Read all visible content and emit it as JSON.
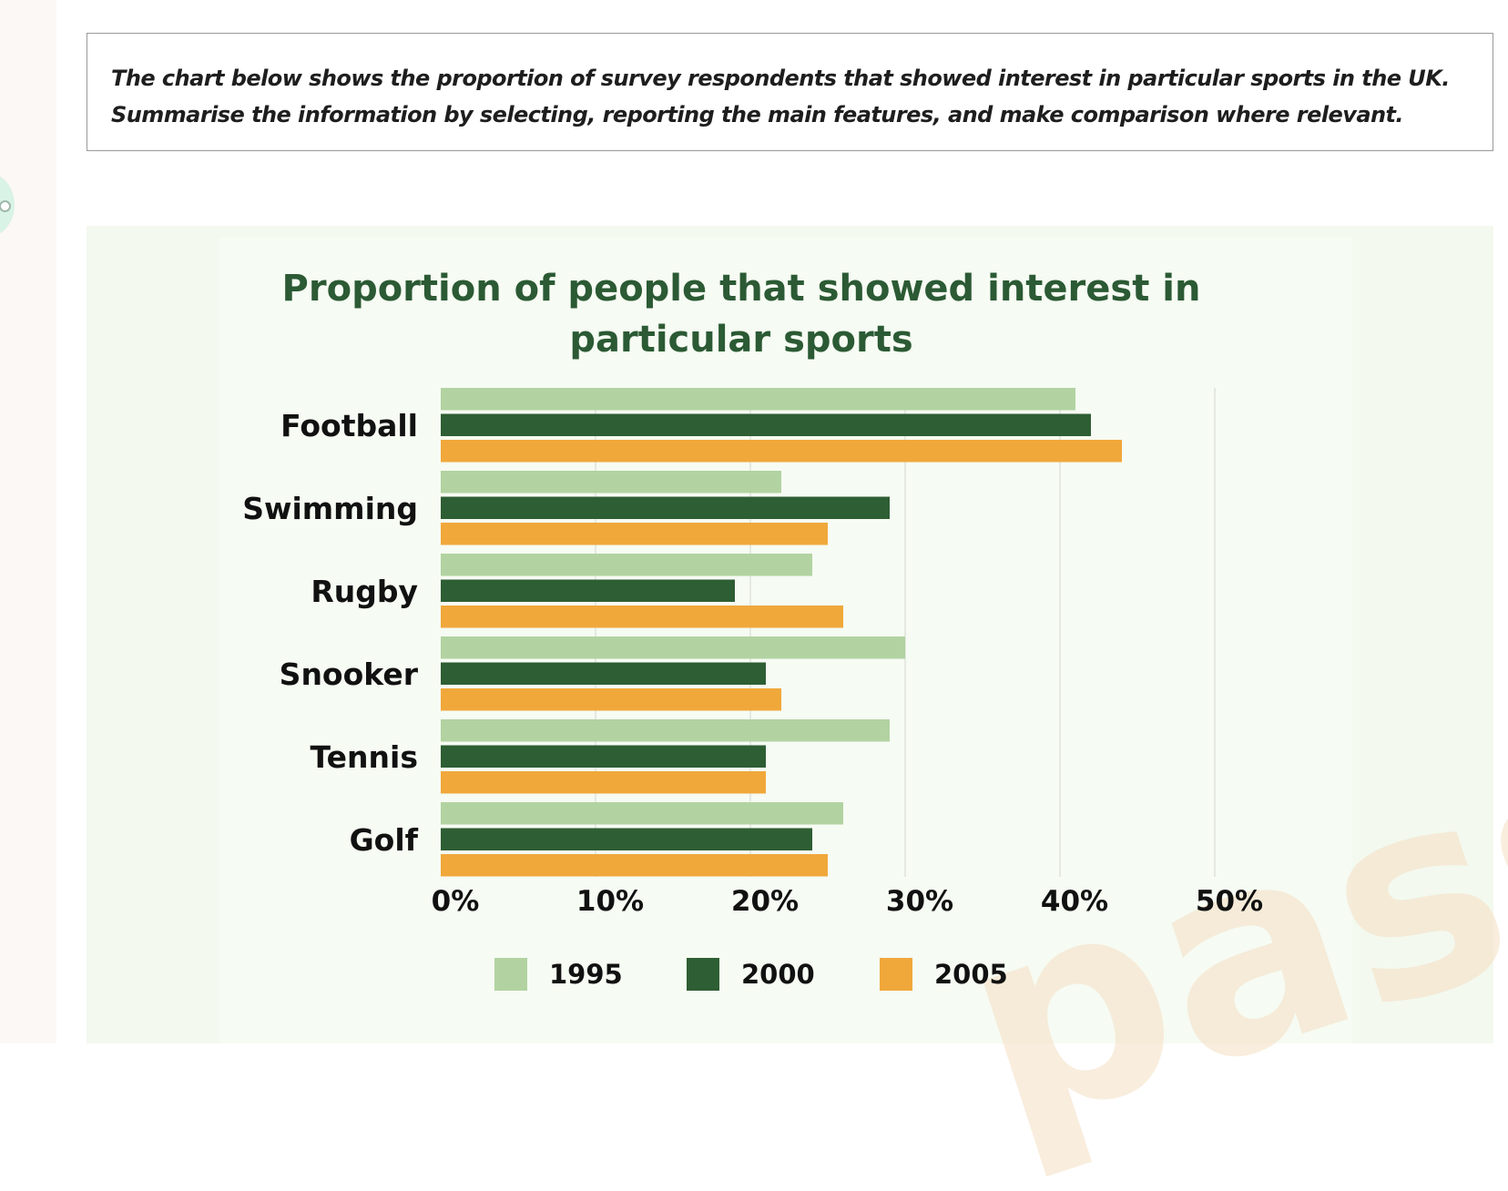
{
  "prompt": {
    "line1": "The chart below shows the proportion of survey respondents that showed interest in particular sports in the UK.",
    "line2": "Summarise the information by selecting, reporting the main features, and make comparison where relevant."
  },
  "watermark_text": "pass",
  "chart_data": {
    "type": "bar",
    "orientation": "horizontal",
    "title": "Proportion of people that showed interest in particular sports",
    "title_lines": [
      "Proportion of people that showed interest in",
      "particular sports"
    ],
    "categories": [
      "Football",
      "Swimming",
      "Rugby",
      "Snooker",
      "Tennis",
      "Golf"
    ],
    "series": [
      {
        "name": "1995",
        "color": "#b2d3a1",
        "values": [
          41,
          22,
          24,
          30,
          29,
          26
        ]
      },
      {
        "name": "2000",
        "color": "#2e5e34",
        "values": [
          42,
          29,
          19,
          21,
          21,
          24
        ]
      },
      {
        "name": "2005",
        "color": "#f0a83b",
        "values": [
          44,
          25,
          26,
          22,
          21,
          25
        ]
      }
    ],
    "xticks": [
      "0%",
      "10%",
      "20%",
      "30%",
      "40%",
      "50%"
    ],
    "xlim": [
      0,
      50
    ],
    "grid": true,
    "legend_position": "bottom"
  }
}
